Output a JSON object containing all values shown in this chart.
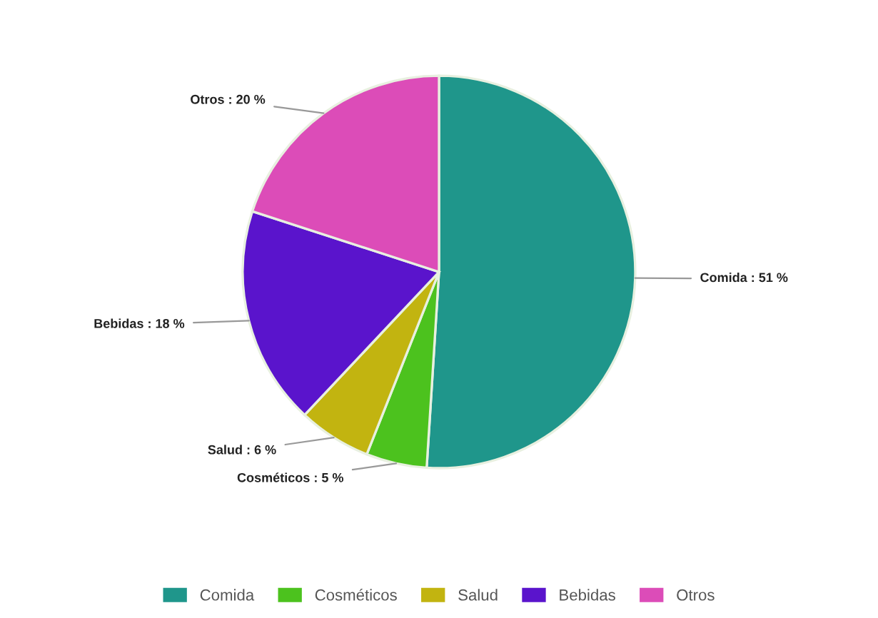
{
  "chart_data": {
    "type": "pie",
    "categories": [
      "Comida",
      "Cosméticos",
      "Salud",
      "Bebidas",
      "Otros"
    ],
    "values": [
      51,
      5,
      6,
      18,
      20
    ],
    "colors": [
      "#1f968b",
      "#4cc21e",
      "#c2b410",
      "#5a14cc",
      "#dc4cb8"
    ],
    "value_labels": [
      "Comida : 51 %",
      "Cosméticos : 5 %",
      "Salud : 6 %",
      "Bebidas : 18 %",
      "Otros : 20 %"
    ],
    "legend": "bottom"
  }
}
